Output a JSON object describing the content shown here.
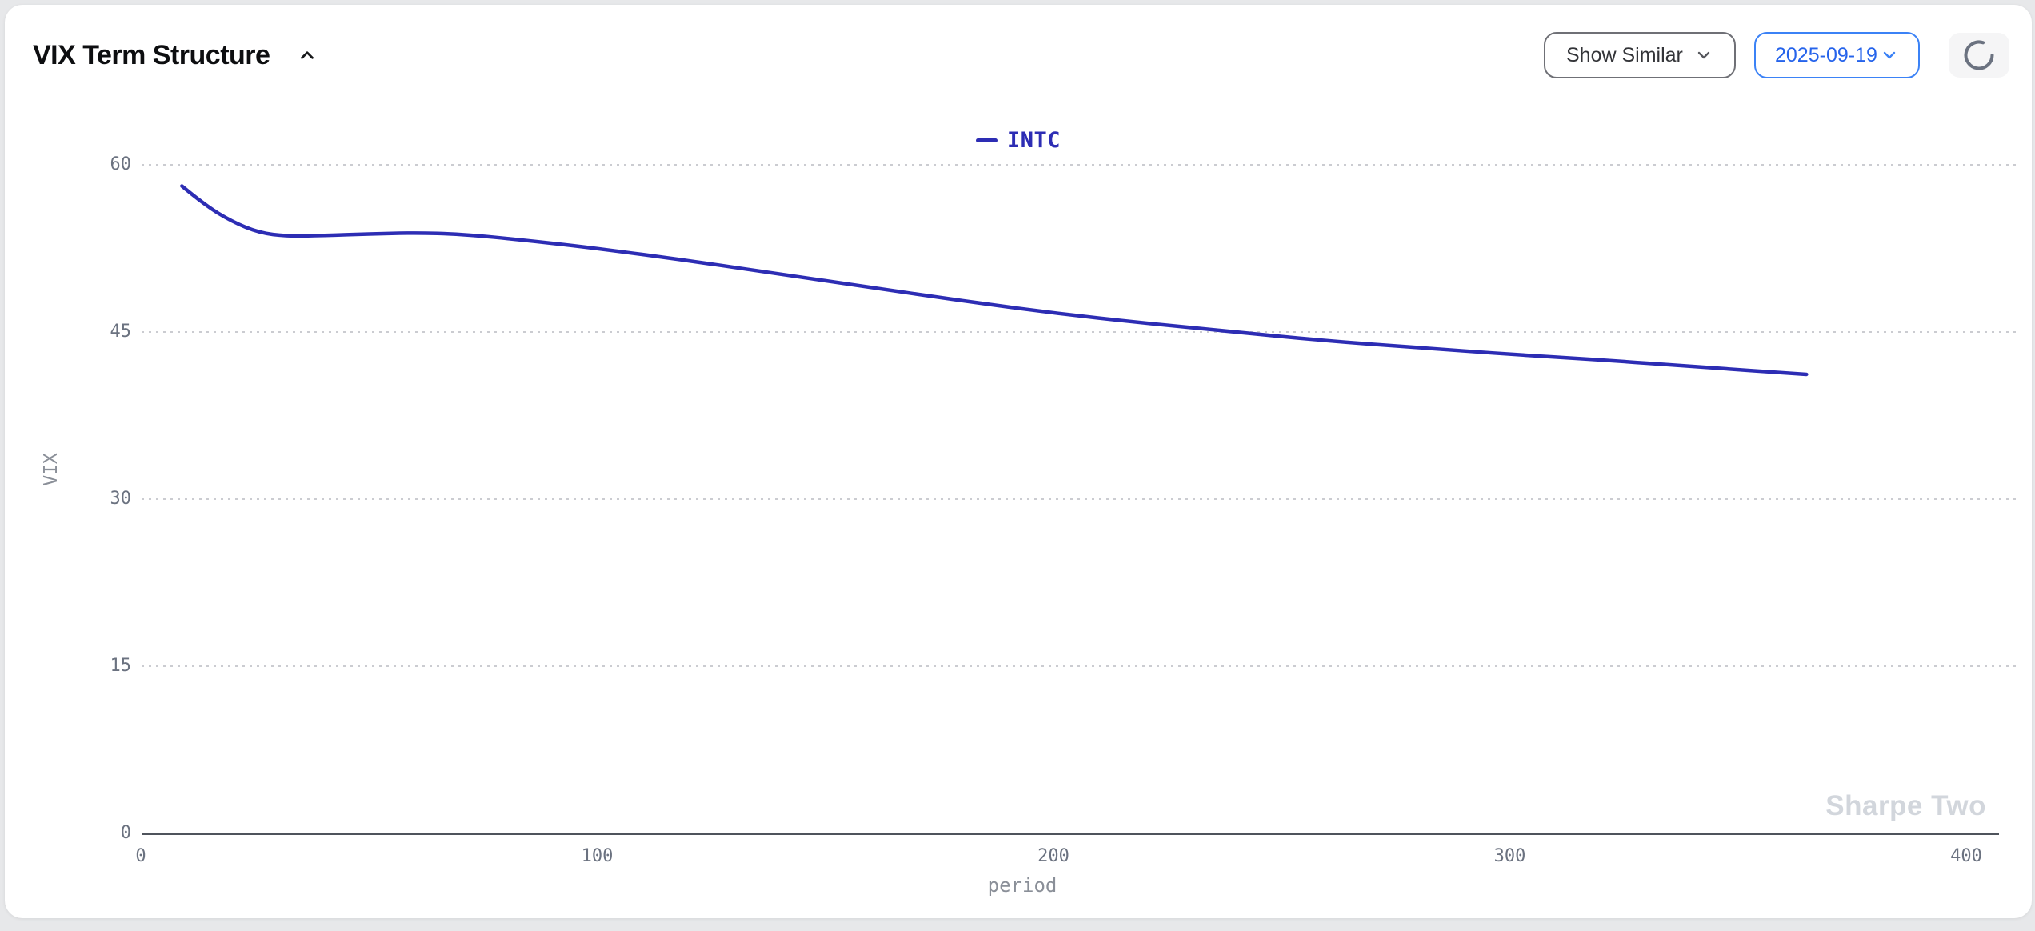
{
  "header": {
    "title": "VIX Term Structure",
    "collapse_icon": "chevron-up-icon",
    "show_similar": {
      "label": "Show Similar",
      "icon": "chevron-down-icon"
    },
    "date_select": {
      "value": "2025-09-19",
      "icon": "chevron-down-icon"
    },
    "refresh": {
      "icon": "loading-spinner-icon"
    }
  },
  "colors": {
    "series_line": "#2d2db4",
    "accent_blue_text": "#2563eb",
    "accent_blue_border": "#3b82f6",
    "tick_gray": "#6b7280",
    "axis_gray": "#4f545c",
    "watermark_gray": "#d2d6dc",
    "card_bg": "#ffffff",
    "page_bg": "#e7e8ea"
  },
  "chart_data": {
    "type": "line",
    "xlabel": "period",
    "ylabel": "VIX",
    "watermark": "Sharpe Two",
    "xlim": [
      0,
      400
    ],
    "ylim": [
      0,
      60
    ],
    "xticks": [
      0,
      100,
      200,
      300,
      400
    ],
    "yticks": [
      0,
      15,
      30,
      45,
      60
    ],
    "grid": "horizontal-dotted",
    "legend_position": "top-center",
    "series": [
      {
        "name": "INTC",
        "color": "#2d2db4",
        "x": [
          9,
          14,
          20,
          26,
          32,
          40,
          50,
          60,
          70,
          85,
          100,
          120,
          140,
          160,
          180,
          200,
          220,
          240,
          260,
          280,
          300,
          320,
          340,
          365
        ],
        "y": [
          58.1,
          56.4,
          54.9,
          53.9,
          53.6,
          53.65,
          53.8,
          53.9,
          53.8,
          53.2,
          52.5,
          51.4,
          50.2,
          49.0,
          47.8,
          46.7,
          45.8,
          45.0,
          44.2,
          43.6,
          43.0,
          42.5,
          41.9,
          41.2
        ]
      }
    ]
  }
}
